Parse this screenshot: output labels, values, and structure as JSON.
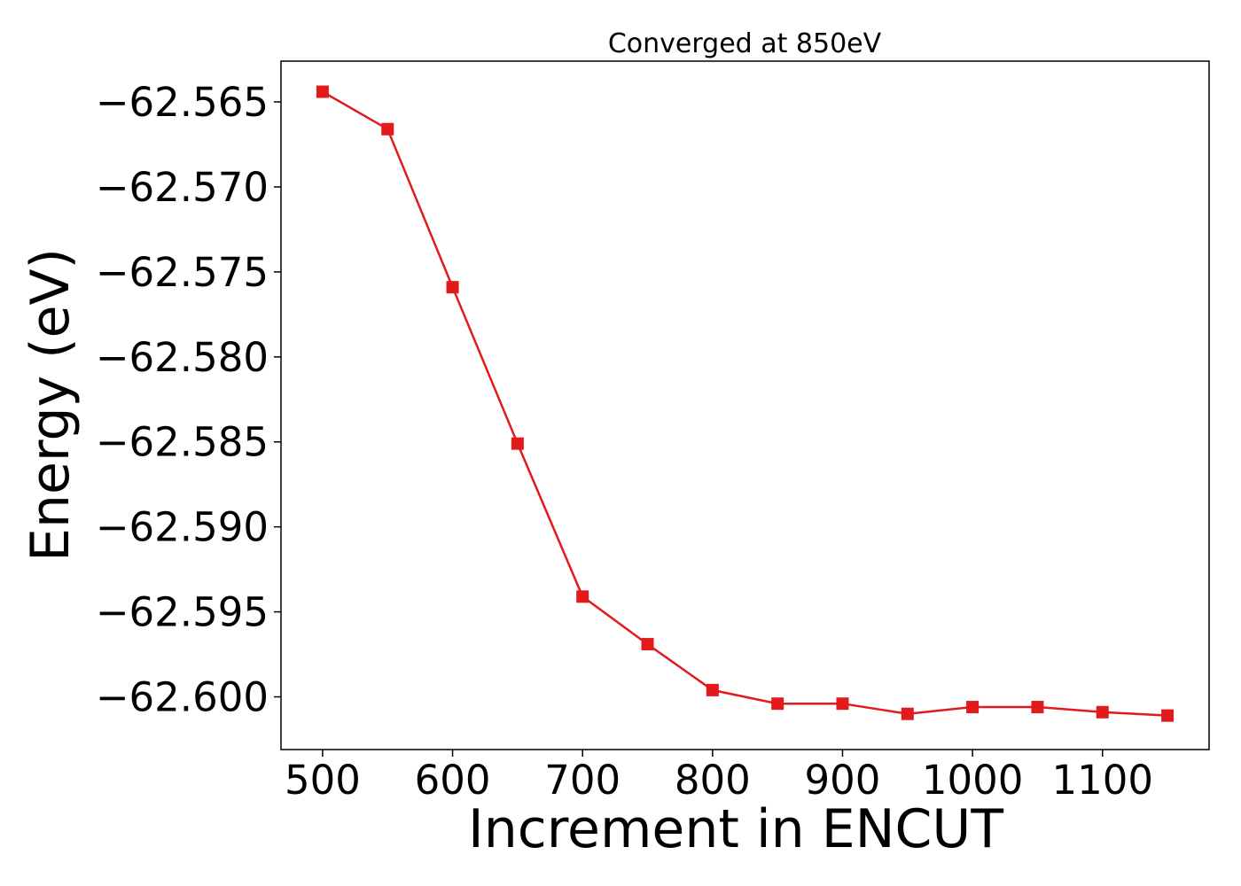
{
  "chart_data": {
    "type": "line",
    "title": "Converged at 850eV",
    "xlabel": "Increment in ENCUT",
    "ylabel": "Energy (eV)",
    "xlim": [
      468,
      1182
    ],
    "ylim": [
      -62.6031,
      -62.5626
    ],
    "x_ticks": [
      500,
      600,
      700,
      800,
      900,
      1000,
      1100
    ],
    "x_tick_labels": [
      "500",
      "600",
      "700",
      "800",
      "900",
      "1000",
      "1100"
    ],
    "y_ticks": [
      -62.565,
      -62.57,
      -62.575,
      -62.58,
      -62.585,
      -62.59,
      -62.595,
      -62.6
    ],
    "y_tick_labels": [
      "−62.565",
      "−62.570",
      "−62.575",
      "−62.580",
      "−62.585",
      "−62.590",
      "−62.595",
      "−62.600"
    ],
    "grid": false,
    "series": [
      {
        "color": "#e31a1c",
        "marker": "square",
        "x": [
          500,
          550,
          600,
          650,
          700,
          750,
          800,
          850,
          900,
          950,
          1000,
          1050,
          1100,
          1150
        ],
        "y": [
          -62.5644,
          -62.5666,
          -62.5759,
          -62.5851,
          -62.5941,
          -62.5969,
          -62.5996,
          -62.6004,
          -62.6004,
          -62.601,
          -62.6006,
          -62.6006,
          -62.6009,
          -62.6011
        ]
      }
    ]
  }
}
